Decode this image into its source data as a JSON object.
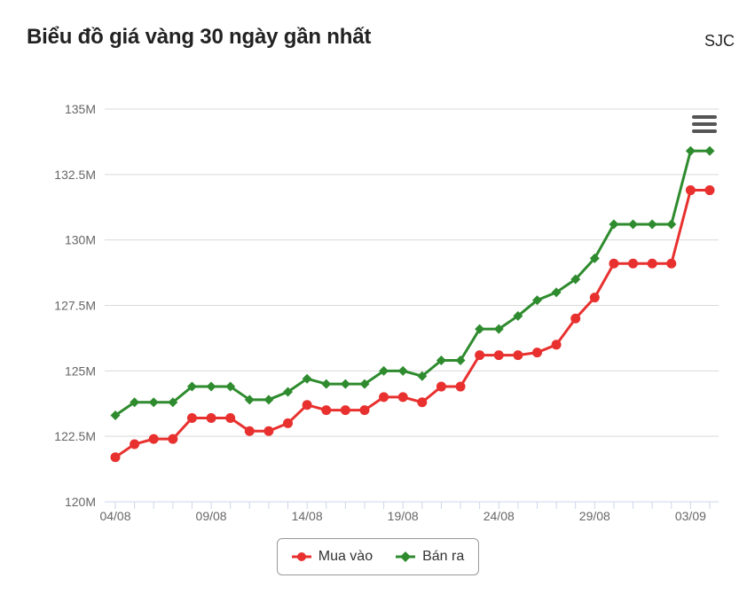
{
  "header": {
    "title": "Biểu đồ giá vàng 30 ngày gần nhất",
    "brand": "SJC"
  },
  "menu": {
    "icon": "hamburger-menu-icon"
  },
  "colors": {
    "buy": "#e8312f",
    "sell": "#2e8b2e",
    "grid": "#d9d9d9",
    "axis": "#ccd6eb",
    "text": "#666666"
  },
  "chart_data": {
    "type": "line",
    "title": "Biểu đồ giá vàng 30 ngày gần nhất",
    "x": [
      "04/08",
      "05/08",
      "06/08",
      "07/08",
      "08/08",
      "09/08",
      "10/08",
      "11/08",
      "12/08",
      "13/08",
      "14/08",
      "15/08",
      "16/08",
      "17/08",
      "18/08",
      "19/08",
      "20/08",
      "21/08",
      "22/08",
      "23/08",
      "24/08",
      "25/08",
      "26/08",
      "27/08",
      "28/08",
      "29/08",
      "30/08",
      "31/08",
      "01/09",
      "02/09",
      "03/09",
      "04/09"
    ],
    "x_tick_labels": [
      "04/08",
      "09/08",
      "14/08",
      "19/08",
      "24/08",
      "29/08",
      "03/09"
    ],
    "y_ticks": [
      "120M",
      "122.5M",
      "125M",
      "127.5M",
      "130M",
      "132.5M",
      "135M"
    ],
    "ylim": [
      120,
      135
    ],
    "y_unit": "M",
    "series": [
      {
        "name": "Mua vào",
        "marker": "circle",
        "values": [
          121.7,
          122.2,
          122.4,
          122.4,
          123.2,
          123.2,
          123.2,
          122.7,
          122.7,
          123.0,
          123.7,
          123.5,
          123.5,
          123.5,
          124.0,
          124.0,
          123.8,
          124.4,
          124.4,
          125.6,
          125.6,
          125.6,
          125.7,
          126.0,
          127.0,
          127.8,
          129.1,
          129.1,
          129.1,
          129.1,
          131.9,
          131.9
        ]
      },
      {
        "name": "Bán ra",
        "marker": "diamond",
        "values": [
          123.3,
          123.8,
          123.8,
          123.8,
          124.4,
          124.4,
          124.4,
          123.9,
          123.9,
          124.2,
          124.7,
          124.5,
          124.5,
          124.5,
          125.0,
          125.0,
          124.8,
          125.4,
          125.4,
          126.6,
          126.6,
          127.1,
          127.7,
          128.0,
          128.5,
          129.3,
          130.6,
          130.6,
          130.6,
          130.6,
          133.4,
          133.4
        ]
      }
    ],
    "legend": "bottom-center",
    "grid": true
  }
}
